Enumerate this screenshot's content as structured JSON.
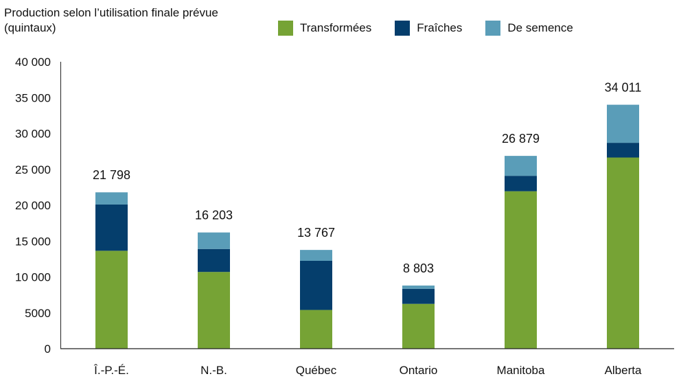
{
  "chart_data": {
    "type": "bar",
    "stacked": true,
    "ylabel_lines": [
      "Production selon l’utilisation finale prévue",
      "(quintaux)"
    ],
    "categories": [
      "Î.-P.-É.",
      "N.-B.",
      "Québec",
      "Ontario",
      "Manitoba",
      "Alberta"
    ],
    "series": [
      {
        "name": "Transformées",
        "color": "#76a335",
        "values": [
          13650,
          10700,
          5400,
          6250,
          21950,
          26650
        ]
      },
      {
        "name": "Fraîches",
        "color": "#053e6c",
        "values": [
          6450,
          3200,
          6850,
          2100,
          2150,
          2050
        ]
      },
      {
        "name": "De semence",
        "color": "#5a9db8",
        "values": [
          1698,
          2303,
          1517,
          453,
          2779,
          5311
        ]
      }
    ],
    "totals": [
      "21 798",
      "16 203",
      "13 767",
      "8 803",
      "26 879",
      "34 011"
    ],
    "ylim": [
      0,
      40000
    ],
    "yticks": [
      "0",
      "5000",
      "10 000",
      "15 000",
      "20 000",
      "25 000",
      "30 000",
      "35 000",
      "40 000"
    ],
    "grid": false,
    "legend_position": "top"
  }
}
